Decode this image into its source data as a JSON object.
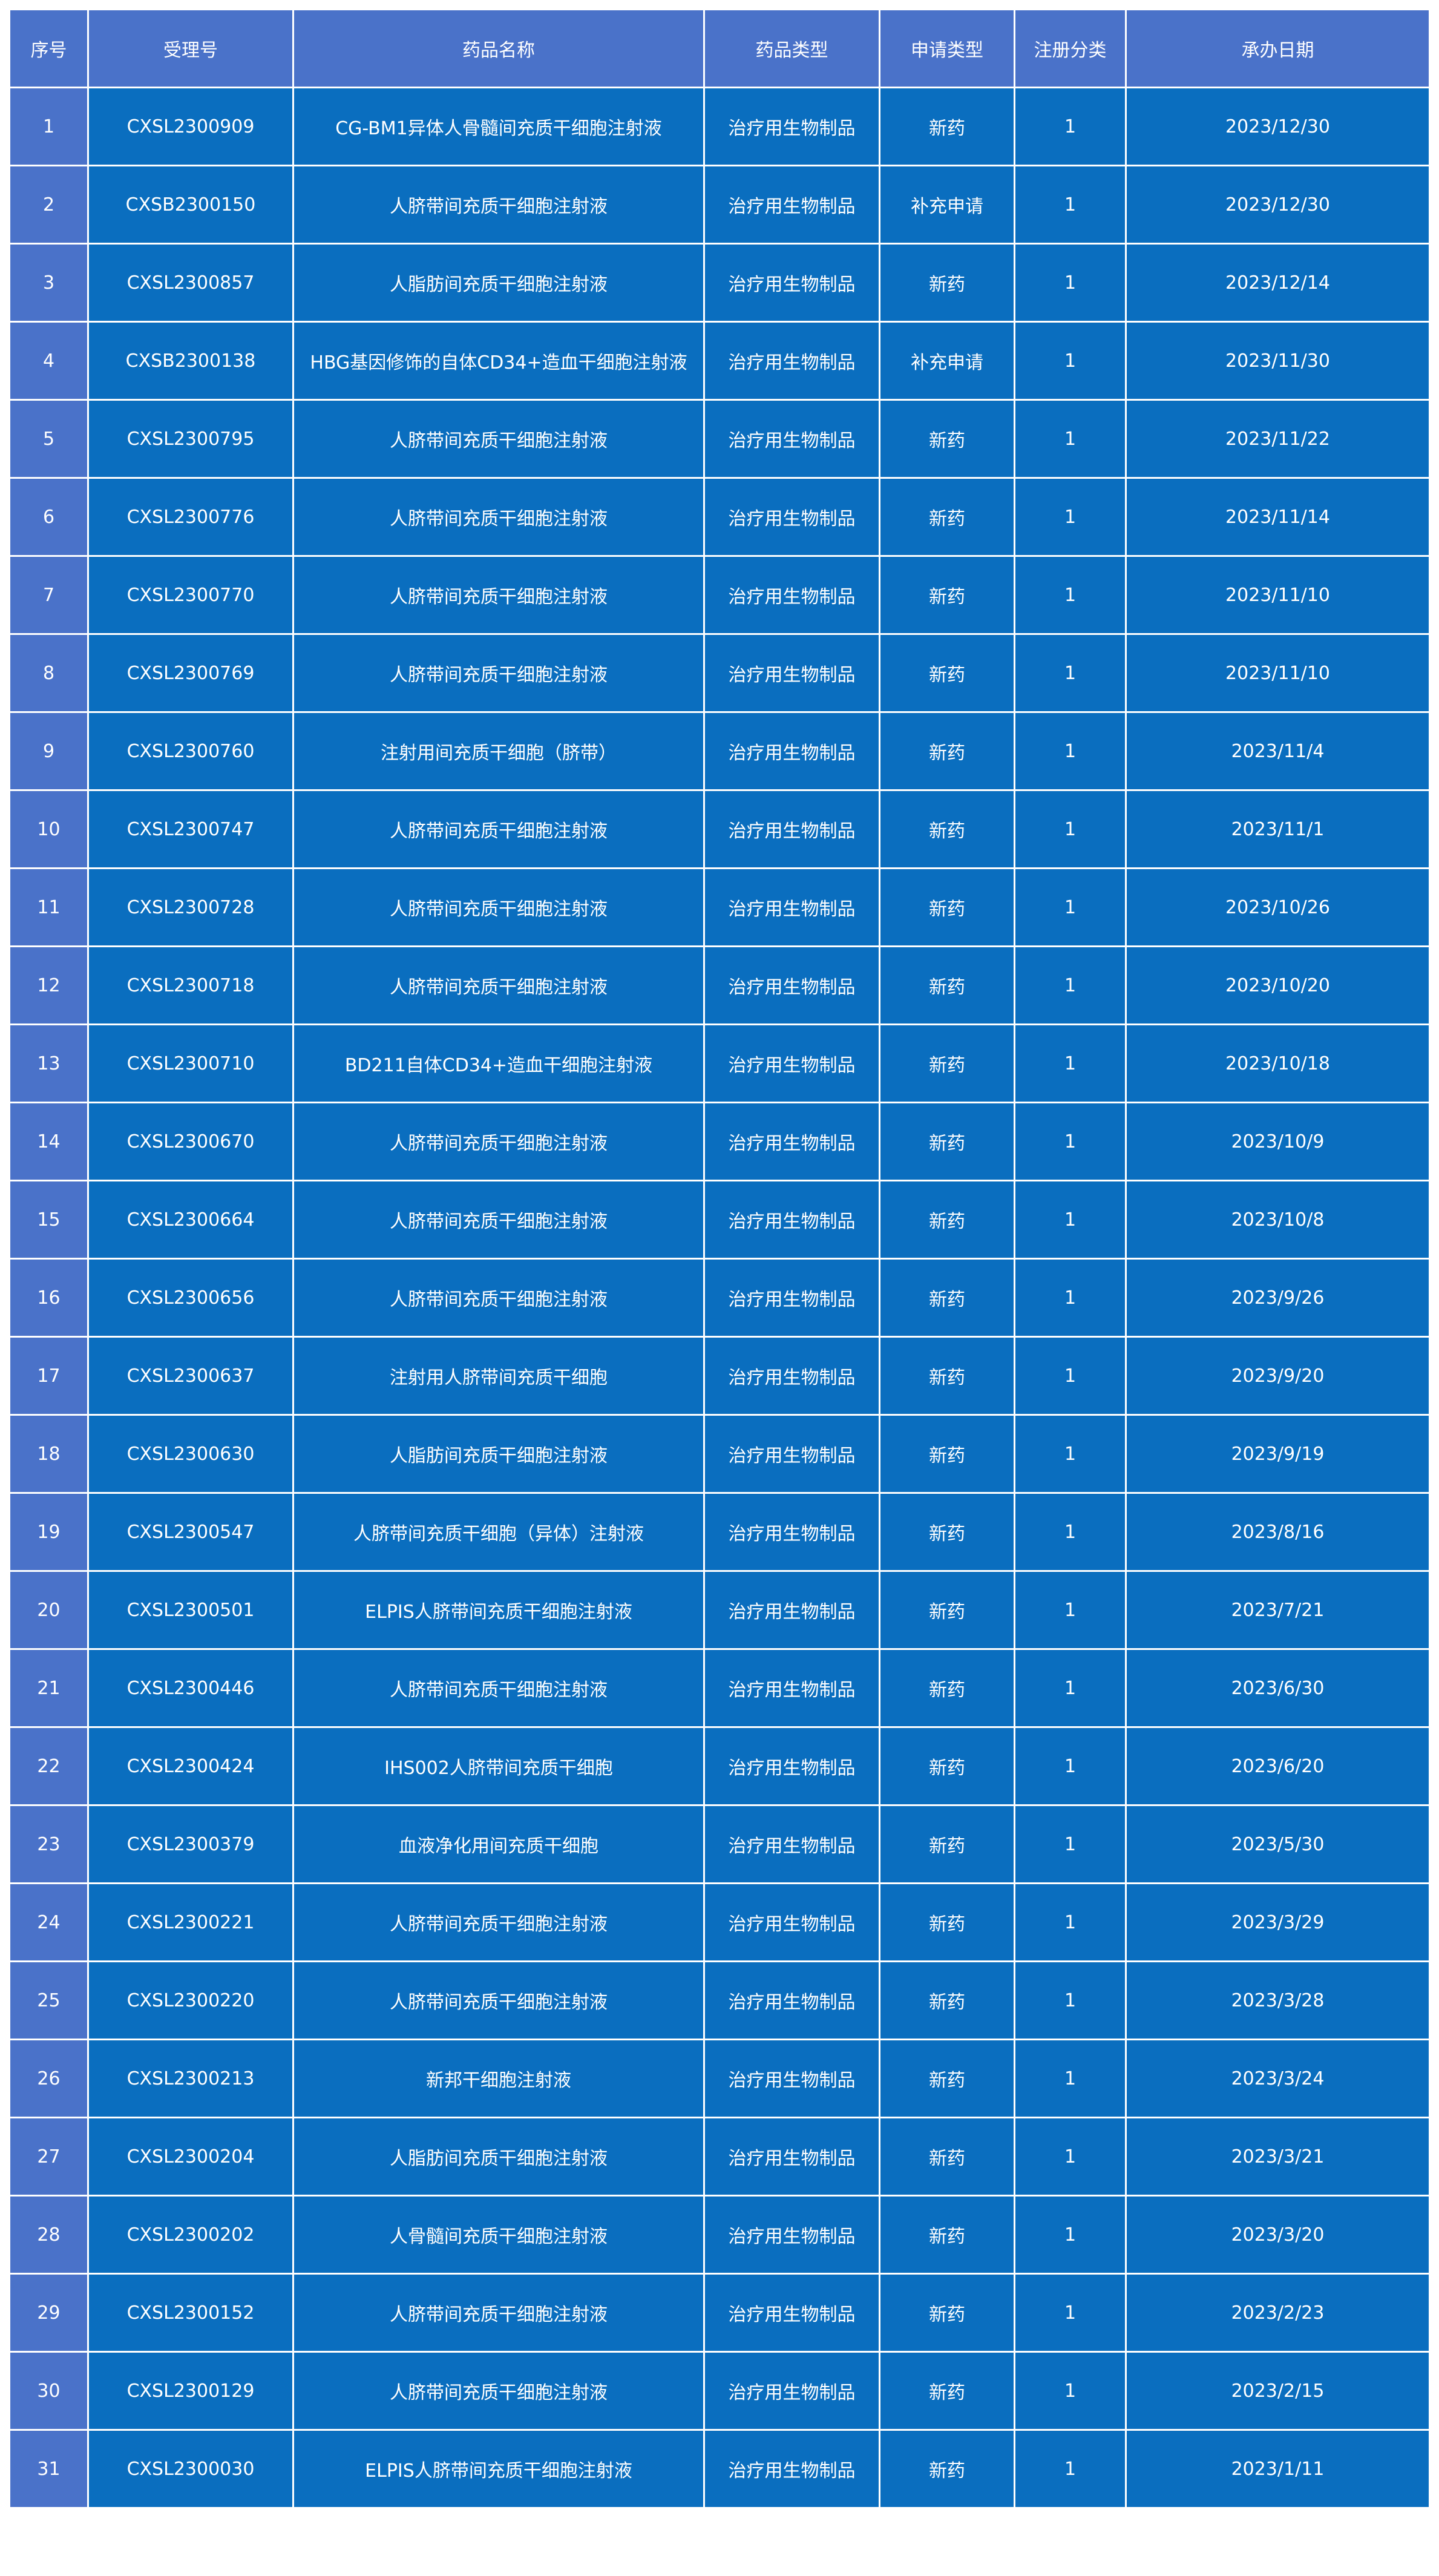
{
  "table": {
    "headers": [
      "序号",
      "受理号",
      "药品名称",
      "药品类型",
      "申请类型",
      "注册分类",
      "承办日期"
    ],
    "rows": [
      [
        "1",
        "CXSL2300909",
        "CG-BM1异体人骨髓间充质干细胞注射液",
        "治疗用生物制品",
        "新药",
        "1",
        "2023/12/30"
      ],
      [
        "2",
        "CXSB2300150",
        "人脐带间充质干细胞注射液",
        "治疗用生物制品",
        "补充申请",
        "1",
        "2023/12/30"
      ],
      [
        "3",
        "CXSL2300857",
        "人脂肪间充质干细胞注射液",
        "治疗用生物制品",
        "新药",
        "1",
        "2023/12/14"
      ],
      [
        "4",
        "CXSB2300138",
        "HBG基因修饰的自体CD34+造血干细胞注射液",
        "治疗用生物制品",
        "补充申请",
        "1",
        "2023/11/30"
      ],
      [
        "5",
        "CXSL2300795",
        "人脐带间充质干细胞注射液",
        "治疗用生物制品",
        "新药",
        "1",
        "2023/11/22"
      ],
      [
        "6",
        "CXSL2300776",
        "人脐带间充质干细胞注射液",
        "治疗用生物制品",
        "新药",
        "1",
        "2023/11/14"
      ],
      [
        "7",
        "CXSL2300770",
        "人脐带间充质干细胞注射液",
        "治疗用生物制品",
        "新药",
        "1",
        "2023/11/10"
      ],
      [
        "8",
        "CXSL2300769",
        "人脐带间充质干细胞注射液",
        "治疗用生物制品",
        "新药",
        "1",
        "2023/11/10"
      ],
      [
        "9",
        "CXSL2300760",
        "注射用间充质干细胞（脐带）",
        "治疗用生物制品",
        "新药",
        "1",
        "2023/11/4"
      ],
      [
        "10",
        "CXSL2300747",
        "人脐带间充质干细胞注射液",
        "治疗用生物制品",
        "新药",
        "1",
        "2023/11/1"
      ],
      [
        "11",
        "CXSL2300728",
        "人脐带间充质干细胞注射液",
        "治疗用生物制品",
        "新药",
        "1",
        "2023/10/26"
      ],
      [
        "12",
        "CXSL2300718",
        "人脐带间充质干细胞注射液",
        "治疗用生物制品",
        "新药",
        "1",
        "2023/10/20"
      ],
      [
        "13",
        "CXSL2300710",
        "BD211自体CD34+造血干细胞注射液",
        "治疗用生物制品",
        "新药",
        "1",
        "2023/10/18"
      ],
      [
        "14",
        "CXSL2300670",
        "人脐带间充质干细胞注射液",
        "治疗用生物制品",
        "新药",
        "1",
        "2023/10/9"
      ],
      [
        "15",
        "CXSL2300664",
        "人脐带间充质干细胞注射液",
        "治疗用生物制品",
        "新药",
        "1",
        "2023/10/8"
      ],
      [
        "16",
        "CXSL2300656",
        "人脐带间充质干细胞注射液",
        "治疗用生物制品",
        "新药",
        "1",
        "2023/9/26"
      ],
      [
        "17",
        "CXSL2300637",
        "注射用人脐带间充质干细胞",
        "治疗用生物制品",
        "新药",
        "1",
        "2023/9/20"
      ],
      [
        "18",
        "CXSL2300630",
        "人脂肪间充质干细胞注射液",
        "治疗用生物制品",
        "新药",
        "1",
        "2023/9/19"
      ],
      [
        "19",
        "CXSL2300547",
        "人脐带间充质干细胞（异体）注射液",
        "治疗用生物制品",
        "新药",
        "1",
        "2023/8/16"
      ],
      [
        "20",
        "CXSL2300501",
        "ELPIS人脐带间充质干细胞注射液",
        "治疗用生物制品",
        "新药",
        "1",
        "2023/7/21"
      ],
      [
        "21",
        "CXSL2300446",
        "人脐带间充质干细胞注射液",
        "治疗用生物制品",
        "新药",
        "1",
        "2023/6/30"
      ],
      [
        "22",
        "CXSL2300424",
        "IHS002人脐带间充质干细胞",
        "治疗用生物制品",
        "新药",
        "1",
        "2023/6/20"
      ],
      [
        "23",
        "CXSL2300379",
        "血液净化用间充质干细胞",
        "治疗用生物制品",
        "新药",
        "1",
        "2023/5/30"
      ],
      [
        "24",
        "CXSL2300221",
        "人脐带间充质干细胞注射液",
        "治疗用生物制品",
        "新药",
        "1",
        "2023/3/29"
      ],
      [
        "25",
        "CXSL2300220",
        "人脐带间充质干细胞注射液",
        "治疗用生物制品",
        "新药",
        "1",
        "2023/3/28"
      ],
      [
        "26",
        "CXSL2300213",
        "新邦干细胞注射液",
        "治疗用生物制品",
        "新药",
        "1",
        "2023/3/24"
      ],
      [
        "27",
        "CXSL2300204",
        "人脂肪间充质干细胞注射液",
        "治疗用生物制品",
        "新药",
        "1",
        "2023/3/21"
      ],
      [
        "28",
        "CXSL2300202",
        "人骨髓间充质干细胞注射液",
        "治疗用生物制品",
        "新药",
        "1",
        "2023/3/20"
      ],
      [
        "29",
        "CXSL2300152",
        "人脐带间充质干细胞注射液",
        "治疗用生物制品",
        "新药",
        "1",
        "2023/2/23"
      ],
      [
        "30",
        "CXSL2300129",
        "人脐带间充质干细胞注射液",
        "治疗用生物制品",
        "新药",
        "1",
        "2023/2/15"
      ],
      [
        "31",
        "CXSL2300030",
        "ELPIS人脐带间充质干细胞注射液",
        "治疗用生物制品",
        "新药",
        "1",
        "2023/1/11"
      ]
    ]
  }
}
